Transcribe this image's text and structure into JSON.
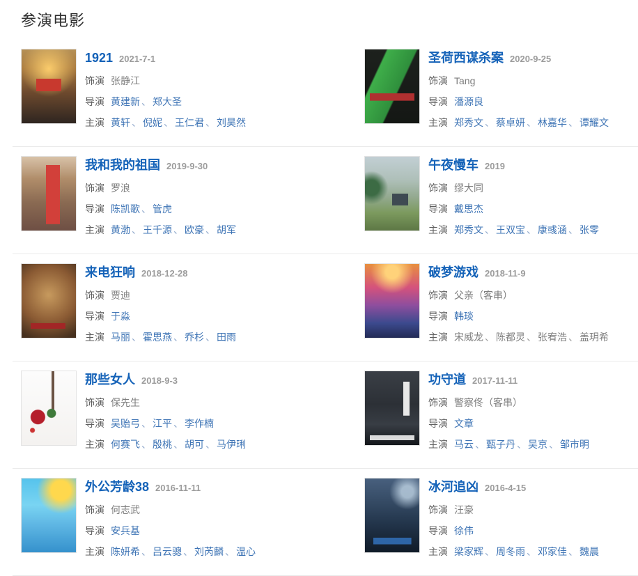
{
  "page": {
    "heading": "参演电影"
  },
  "labels": {
    "role": "饰演",
    "director": "导演",
    "starring": "主演",
    "separator": "、"
  },
  "colors": {
    "movie_title_link": "#1462b8",
    "person_link": "#3e74b5",
    "release_date": "#9c9c9c",
    "meta_label": "#5f5f5f",
    "plain_value": "#7d7d7d",
    "row_divider": "#eaeaea"
  },
  "movies": [
    {
      "title": "1921",
      "date": "2021-7-1",
      "role": "张静江",
      "directors": [
        "黄建新",
        "郑大圣"
      ],
      "stars": [
        "黄轩",
        "倪妮",
        "王仁君",
        "刘昊然"
      ],
      "stars_linked": true,
      "poster": "poster-1921"
    },
    {
      "title": "圣荷西谋杀案",
      "date": "2020-9-25",
      "role": "Tang",
      "directors": [
        "潘源良"
      ],
      "stars": [
        "郑秀文",
        "蔡卓妍",
        "林嘉华",
        "谭耀文"
      ],
      "stars_linked": true,
      "poster": "poster-fatal-visit"
    },
    {
      "title": "我和我的祖国",
      "date": "2019-9-30",
      "role": "罗浪",
      "directors": [
        "陈凯歌",
        "管虎"
      ],
      "stars": [
        "黄渤",
        "王千源",
        "欧豪",
        "胡军"
      ],
      "stars_linked": true,
      "poster": "poster-my-people"
    },
    {
      "title": "午夜慢车",
      "date": "2019",
      "role": "缪大同",
      "directors": [
        "戴思杰"
      ],
      "stars": [
        "郑秀文",
        "王双宝",
        "康彧涵",
        "张零"
      ],
      "stars_linked": true,
      "poster": "poster-night-train"
    },
    {
      "title": "来电狂响",
      "date": "2018-12-28",
      "role": "贾迪",
      "directors": [
        "于淼"
      ],
      "stars": [
        "马丽",
        "霍思燕",
        "乔杉",
        "田雨"
      ],
      "stars_linked": true,
      "poster": "poster-kill-mobile"
    },
    {
      "title": "破梦游戏",
      "date": "2018-11-9",
      "role": "父亲（客串）",
      "directors": [
        "韩琰"
      ],
      "stars": [
        "宋威龙",
        "陈都灵",
        "张宥浩",
        "盖玥希"
      ],
      "stars_linked": false,
      "poster": "poster-dream-game"
    },
    {
      "title": "那些女人",
      "date": "2018-9-3",
      "role": "保先生",
      "directors": [
        "吴贻弓",
        "江平",
        "李作楠"
      ],
      "stars": [
        "何赛飞",
        "殷桃",
        "胡可",
        "马伊琍"
      ],
      "stars_linked": true,
      "poster": "poster-those-women"
    },
    {
      "title": "功守道",
      "date": "2017-11-11",
      "role": "警察佟（客串）",
      "directors": [
        "文章"
      ],
      "stars": [
        "马云",
        "甄子丹",
        "吴京",
        "邹市明"
      ],
      "stars_linked": true,
      "poster": "poster-gsd"
    },
    {
      "title": "外公芳龄38",
      "date": "2016-11-11",
      "role": "何志武",
      "directors": [
        "安兵基"
      ],
      "stars": [
        "陈妍希",
        "吕云骢",
        "刘芮麟",
        "温心"
      ],
      "stars_linked": true,
      "poster": "poster-grandpa38"
    },
    {
      "title": "冰河追凶",
      "date": "2016-4-15",
      "role": "汪豪",
      "directors": [
        "徐伟"
      ],
      "stars": [
        "梁家辉",
        "周冬雨",
        "邓家佳",
        "魏晨"
      ],
      "stars_linked": true,
      "poster": "poster-ice-river"
    }
  ]
}
